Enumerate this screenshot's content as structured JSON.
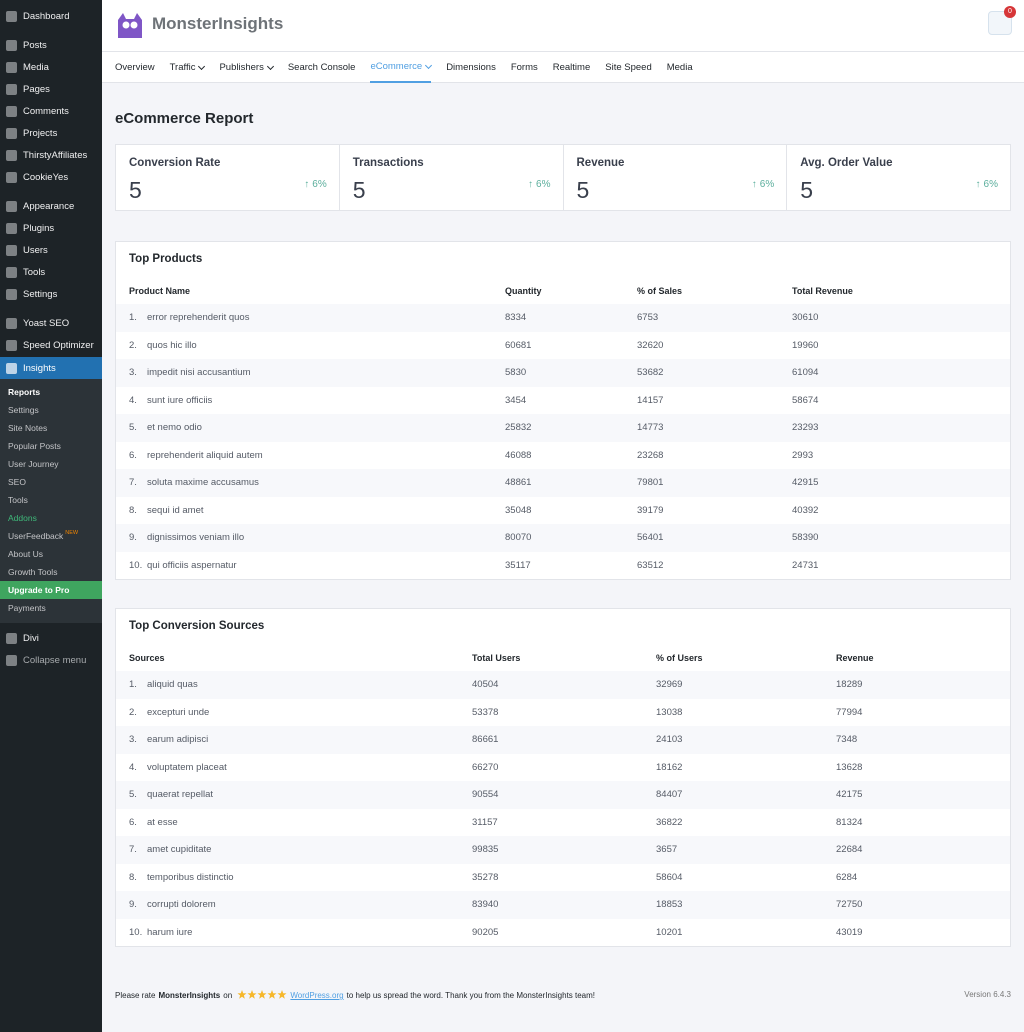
{
  "sidebar": {
    "groups": [
      [
        "Dashboard"
      ],
      [
        "Posts",
        "Media",
        "Pages",
        "Comments",
        "Projects",
        "ThirstyAffiliates",
        "CookieYes"
      ],
      [
        "Appearance",
        "Plugins",
        "Users",
        "Tools",
        "Settings"
      ],
      [
        "Yoast SEO",
        "Speed Optimizer"
      ]
    ],
    "active": "Insights",
    "submenu": [
      {
        "label": "Reports",
        "current": true
      },
      {
        "label": "Settings"
      },
      {
        "label": "Site Notes"
      },
      {
        "label": "Popular Posts"
      },
      {
        "label": "User Journey"
      },
      {
        "label": "SEO"
      },
      {
        "label": "Tools"
      },
      {
        "label": "Addons",
        "color": "#3fb97a"
      },
      {
        "label": "UserFeedback",
        "badge": "NEW"
      },
      {
        "label": "About Us"
      },
      {
        "label": "Growth Tools"
      },
      {
        "label": "Upgrade to Pro",
        "upgrade": true
      },
      {
        "label": "Payments"
      }
    ],
    "after": [
      "Divi"
    ],
    "collapse": "Collapse menu"
  },
  "header": {
    "logo": "MonsterInsights",
    "notifications": "0"
  },
  "tabs": [
    {
      "label": "Overview"
    },
    {
      "label": "Traffic",
      "dropdown": true
    },
    {
      "label": "Publishers",
      "dropdown": true
    },
    {
      "label": "Search Console"
    },
    {
      "label": "eCommerce",
      "dropdown": true,
      "active": true
    },
    {
      "label": "Dimensions"
    },
    {
      "label": "Forms"
    },
    {
      "label": "Realtime"
    },
    {
      "label": "Site Speed"
    },
    {
      "label": "Media"
    }
  ],
  "report": {
    "title": "eCommerce Report",
    "stats": [
      {
        "label": "Conversion Rate",
        "value": 5,
        "change": "6%"
      },
      {
        "label": "Transactions",
        "value": 5,
        "change": "6%"
      },
      {
        "label": "Revenue",
        "value": 5,
        "change": "6%"
      },
      {
        "label": "Avg. Order Value",
        "value": 5,
        "change": "6%"
      }
    ],
    "tables": [
      {
        "title": "Top Products",
        "columns": [
          "Product Name",
          "Quantity",
          "% of Sales",
          "Total Revenue"
        ],
        "rows": [
          [
            "1.",
            "error reprehenderit quos",
            8334,
            6753,
            30610
          ],
          [
            "2.",
            "quos hic illo",
            60681,
            32620,
            19960
          ],
          [
            "3.",
            "impedit nisi accusantium",
            5830,
            53682,
            61094
          ],
          [
            "4.",
            "sunt iure officiis",
            3454,
            14157,
            58674
          ],
          [
            "5.",
            "et nemo odio",
            25832,
            14773,
            23293
          ],
          [
            "6.",
            "reprehenderit aliquid autem",
            46088,
            23268,
            2993
          ],
          [
            "7.",
            "soluta maxime accusamus",
            48861,
            79801,
            42915
          ],
          [
            "8.",
            "sequi id amet",
            35048,
            39179,
            40392
          ],
          [
            "9.",
            "dignissimos veniam illo",
            80070,
            56401,
            58390
          ],
          [
            "10.",
            "qui officiis aspernatur",
            35117,
            63512,
            24731
          ]
        ]
      },
      {
        "title": "Top Conversion Sources",
        "columns": [
          "Sources",
          "Total Users",
          "% of Users",
          "Revenue"
        ],
        "rows": [
          [
            "1.",
            "aliquid quas",
            40504,
            32969,
            18289
          ],
          [
            "2.",
            "excepturi unde",
            53378,
            13038,
            77994
          ],
          [
            "3.",
            "earum adipisci",
            86661,
            24103,
            7348
          ],
          [
            "4.",
            "voluptatem placeat",
            66270,
            18162,
            13628
          ],
          [
            "5.",
            "quaerat repellat",
            90554,
            84407,
            42175
          ],
          [
            "6.",
            "at esse",
            31157,
            36822,
            81324
          ],
          [
            "7.",
            "amet cupiditate",
            99835,
            3657,
            22684
          ],
          [
            "8.",
            "temporibus distinctio",
            35278,
            58604,
            6284
          ],
          [
            "9.",
            "corrupti dolorem",
            83940,
            18853,
            72750
          ],
          [
            "10.",
            "harum iure",
            90205,
            10201,
            43019
          ]
        ]
      }
    ]
  },
  "footer": {
    "before": "Please rate",
    "brand": "MonsterInsights",
    "on": "on",
    "link": "WordPress.org",
    "after": "to help us spread the word. Thank you from the MonsterInsights team!",
    "version": "Version 6.4.3"
  }
}
